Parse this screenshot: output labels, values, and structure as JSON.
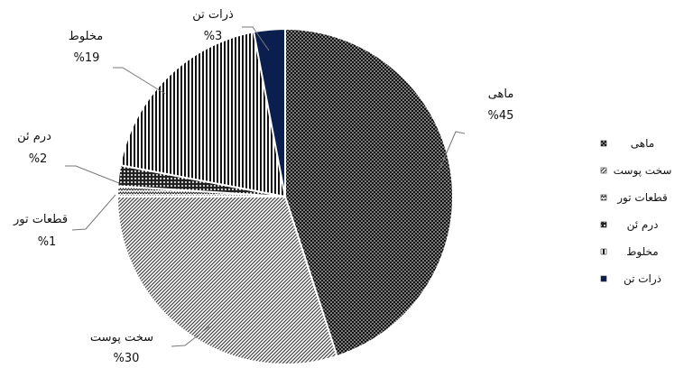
{
  "chart_data": {
    "type": "pie",
    "title": "",
    "legend_position": "right",
    "slices": [
      {
        "name": "ماهی",
        "value": 45,
        "label": "%45",
        "pattern": "dots",
        "color": "#111111"
      },
      {
        "name": "سخت پوست",
        "value": 30,
        "label": "%30",
        "pattern": "diag",
        "color": "#555555"
      },
      {
        "name": "قطعات تور",
        "value": 1,
        "label": "%1",
        "pattern": "zigzag",
        "color": "#333333"
      },
      {
        "name": "درم ئن",
        "value": 2,
        "label": "%2",
        "pattern": "circles",
        "color": "#222222"
      },
      {
        "name": "مخلوط",
        "value": 19,
        "label": "%19",
        "pattern": "vlines",
        "color": "#111111"
      },
      {
        "name": "ذرات تن",
        "value": 3,
        "label": "%3",
        "pattern": "solid",
        "color": "#0b1f4e"
      }
    ]
  }
}
